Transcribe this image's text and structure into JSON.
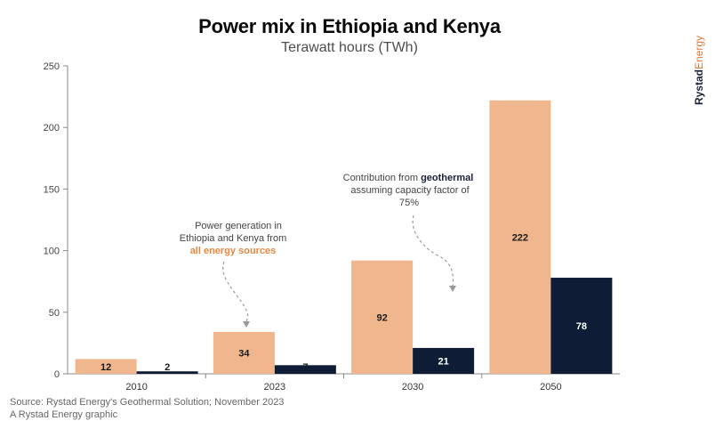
{
  "title": "Power mix in Ethiopia and Kenya",
  "subtitle": "Terawatt hours (TWh)",
  "brand": {
    "part1": "Rystad",
    "part2": "Energy"
  },
  "source_line": "Source: Rystad Energy's Geothermal Solution; November 2023",
  "graphic_line": "A Rystad Energy graphic",
  "colors": {
    "all_sources": "#f0b68e",
    "geothermal": "#0e1c36",
    "accent_text": "#e9873f"
  },
  "annotations": {
    "all_sources": {
      "line1": "Power generation in",
      "line2": "Ethiopia and Kenya from",
      "highlight": "all energy sources"
    },
    "geothermal": {
      "prefix": "Contribution from ",
      "highlight": "geothermal",
      "line2": "assuming capacity factor of",
      "line3": "75%"
    }
  },
  "chart_data": {
    "type": "bar",
    "title": "Power mix in Ethiopia and Kenya",
    "subtitle": "Terawatt hours (TWh)",
    "xlabel": "",
    "ylabel": "",
    "ylim": [
      0,
      250
    ],
    "yticks": [
      0,
      50,
      100,
      150,
      200,
      250
    ],
    "categories": [
      "2010",
      "2023",
      "2030",
      "2050"
    ],
    "series": [
      {
        "name": "All energy sources",
        "values": [
          12,
          34,
          92,
          222
        ]
      },
      {
        "name": "Geothermal",
        "values": [
          2,
          7,
          21,
          78
        ]
      }
    ],
    "grid": false
  }
}
